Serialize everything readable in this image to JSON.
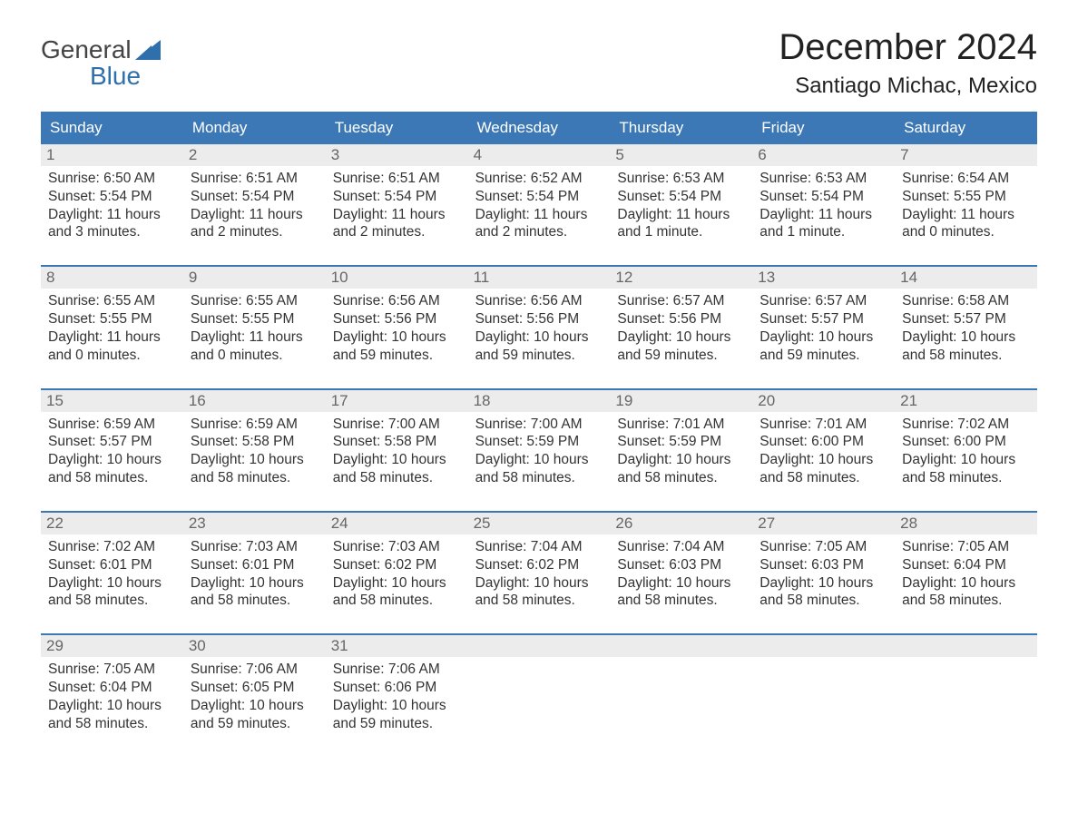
{
  "brand": {
    "line1": "General",
    "line2": "Blue"
  },
  "title": "December 2024",
  "location": "Santiago Michac, Mexico",
  "colors": {
    "header_bg": "#3b78b5",
    "header_text": "#ffffff",
    "band_bg": "#ececec",
    "band_text": "#666666",
    "body_text": "#333333",
    "brand_blue": "#2f6fab",
    "rule": "#3b78b5",
    "page_bg": "#ffffff"
  },
  "typography": {
    "title_fontsize": 40,
    "location_fontsize": 24,
    "dow_fontsize": 17,
    "daynum_fontsize": 17,
    "cell_fontsize": 15.5,
    "logo_fontsize": 28,
    "font_family": "Arial"
  },
  "layout": {
    "columns": 7,
    "weeks": 5
  },
  "dow": [
    "Sunday",
    "Monday",
    "Tuesday",
    "Wednesday",
    "Thursday",
    "Friday",
    "Saturday"
  ],
  "weeks": [
    [
      {
        "n": "1",
        "sunrise": "Sunrise: 6:50 AM",
        "sunset": "Sunset: 5:54 PM",
        "d1": "Daylight: 11 hours",
        "d2": "and 3 minutes."
      },
      {
        "n": "2",
        "sunrise": "Sunrise: 6:51 AM",
        "sunset": "Sunset: 5:54 PM",
        "d1": "Daylight: 11 hours",
        "d2": "and 2 minutes."
      },
      {
        "n": "3",
        "sunrise": "Sunrise: 6:51 AM",
        "sunset": "Sunset: 5:54 PM",
        "d1": "Daylight: 11 hours",
        "d2": "and 2 minutes."
      },
      {
        "n": "4",
        "sunrise": "Sunrise: 6:52 AM",
        "sunset": "Sunset: 5:54 PM",
        "d1": "Daylight: 11 hours",
        "d2": "and 2 minutes."
      },
      {
        "n": "5",
        "sunrise": "Sunrise: 6:53 AM",
        "sunset": "Sunset: 5:54 PM",
        "d1": "Daylight: 11 hours",
        "d2": "and 1 minute."
      },
      {
        "n": "6",
        "sunrise": "Sunrise: 6:53 AM",
        "sunset": "Sunset: 5:54 PM",
        "d1": "Daylight: 11 hours",
        "d2": "and 1 minute."
      },
      {
        "n": "7",
        "sunrise": "Sunrise: 6:54 AM",
        "sunset": "Sunset: 5:55 PM",
        "d1": "Daylight: 11 hours",
        "d2": "and 0 minutes."
      }
    ],
    [
      {
        "n": "8",
        "sunrise": "Sunrise: 6:55 AM",
        "sunset": "Sunset: 5:55 PM",
        "d1": "Daylight: 11 hours",
        "d2": "and 0 minutes."
      },
      {
        "n": "9",
        "sunrise": "Sunrise: 6:55 AM",
        "sunset": "Sunset: 5:55 PM",
        "d1": "Daylight: 11 hours",
        "d2": "and 0 minutes."
      },
      {
        "n": "10",
        "sunrise": "Sunrise: 6:56 AM",
        "sunset": "Sunset: 5:56 PM",
        "d1": "Daylight: 10 hours",
        "d2": "and 59 minutes."
      },
      {
        "n": "11",
        "sunrise": "Sunrise: 6:56 AM",
        "sunset": "Sunset: 5:56 PM",
        "d1": "Daylight: 10 hours",
        "d2": "and 59 minutes."
      },
      {
        "n": "12",
        "sunrise": "Sunrise: 6:57 AM",
        "sunset": "Sunset: 5:56 PM",
        "d1": "Daylight: 10 hours",
        "d2": "and 59 minutes."
      },
      {
        "n": "13",
        "sunrise": "Sunrise: 6:57 AM",
        "sunset": "Sunset: 5:57 PM",
        "d1": "Daylight: 10 hours",
        "d2": "and 59 minutes."
      },
      {
        "n": "14",
        "sunrise": "Sunrise: 6:58 AM",
        "sunset": "Sunset: 5:57 PM",
        "d1": "Daylight: 10 hours",
        "d2": "and 58 minutes."
      }
    ],
    [
      {
        "n": "15",
        "sunrise": "Sunrise: 6:59 AM",
        "sunset": "Sunset: 5:57 PM",
        "d1": "Daylight: 10 hours",
        "d2": "and 58 minutes."
      },
      {
        "n": "16",
        "sunrise": "Sunrise: 6:59 AM",
        "sunset": "Sunset: 5:58 PM",
        "d1": "Daylight: 10 hours",
        "d2": "and 58 minutes."
      },
      {
        "n": "17",
        "sunrise": "Sunrise: 7:00 AM",
        "sunset": "Sunset: 5:58 PM",
        "d1": "Daylight: 10 hours",
        "d2": "and 58 minutes."
      },
      {
        "n": "18",
        "sunrise": "Sunrise: 7:00 AM",
        "sunset": "Sunset: 5:59 PM",
        "d1": "Daylight: 10 hours",
        "d2": "and 58 minutes."
      },
      {
        "n": "19",
        "sunrise": "Sunrise: 7:01 AM",
        "sunset": "Sunset: 5:59 PM",
        "d1": "Daylight: 10 hours",
        "d2": "and 58 minutes."
      },
      {
        "n": "20",
        "sunrise": "Sunrise: 7:01 AM",
        "sunset": "Sunset: 6:00 PM",
        "d1": "Daylight: 10 hours",
        "d2": "and 58 minutes."
      },
      {
        "n": "21",
        "sunrise": "Sunrise: 7:02 AM",
        "sunset": "Sunset: 6:00 PM",
        "d1": "Daylight: 10 hours",
        "d2": "and 58 minutes."
      }
    ],
    [
      {
        "n": "22",
        "sunrise": "Sunrise: 7:02 AM",
        "sunset": "Sunset: 6:01 PM",
        "d1": "Daylight: 10 hours",
        "d2": "and 58 minutes."
      },
      {
        "n": "23",
        "sunrise": "Sunrise: 7:03 AM",
        "sunset": "Sunset: 6:01 PM",
        "d1": "Daylight: 10 hours",
        "d2": "and 58 minutes."
      },
      {
        "n": "24",
        "sunrise": "Sunrise: 7:03 AM",
        "sunset": "Sunset: 6:02 PM",
        "d1": "Daylight: 10 hours",
        "d2": "and 58 minutes."
      },
      {
        "n": "25",
        "sunrise": "Sunrise: 7:04 AM",
        "sunset": "Sunset: 6:02 PM",
        "d1": "Daylight: 10 hours",
        "d2": "and 58 minutes."
      },
      {
        "n": "26",
        "sunrise": "Sunrise: 7:04 AM",
        "sunset": "Sunset: 6:03 PM",
        "d1": "Daylight: 10 hours",
        "d2": "and 58 minutes."
      },
      {
        "n": "27",
        "sunrise": "Sunrise: 7:05 AM",
        "sunset": "Sunset: 6:03 PM",
        "d1": "Daylight: 10 hours",
        "d2": "and 58 minutes."
      },
      {
        "n": "28",
        "sunrise": "Sunrise: 7:05 AM",
        "sunset": "Sunset: 6:04 PM",
        "d1": "Daylight: 10 hours",
        "d2": "and 58 minutes."
      }
    ],
    [
      {
        "n": "29",
        "sunrise": "Sunrise: 7:05 AM",
        "sunset": "Sunset: 6:04 PM",
        "d1": "Daylight: 10 hours",
        "d2": "and 58 minutes."
      },
      {
        "n": "30",
        "sunrise": "Sunrise: 7:06 AM",
        "sunset": "Sunset: 6:05 PM",
        "d1": "Daylight: 10 hours",
        "d2": "and 59 minutes."
      },
      {
        "n": "31",
        "sunrise": "Sunrise: 7:06 AM",
        "sunset": "Sunset: 6:06 PM",
        "d1": "Daylight: 10 hours",
        "d2": "and 59 minutes."
      },
      null,
      null,
      null,
      null
    ]
  ]
}
